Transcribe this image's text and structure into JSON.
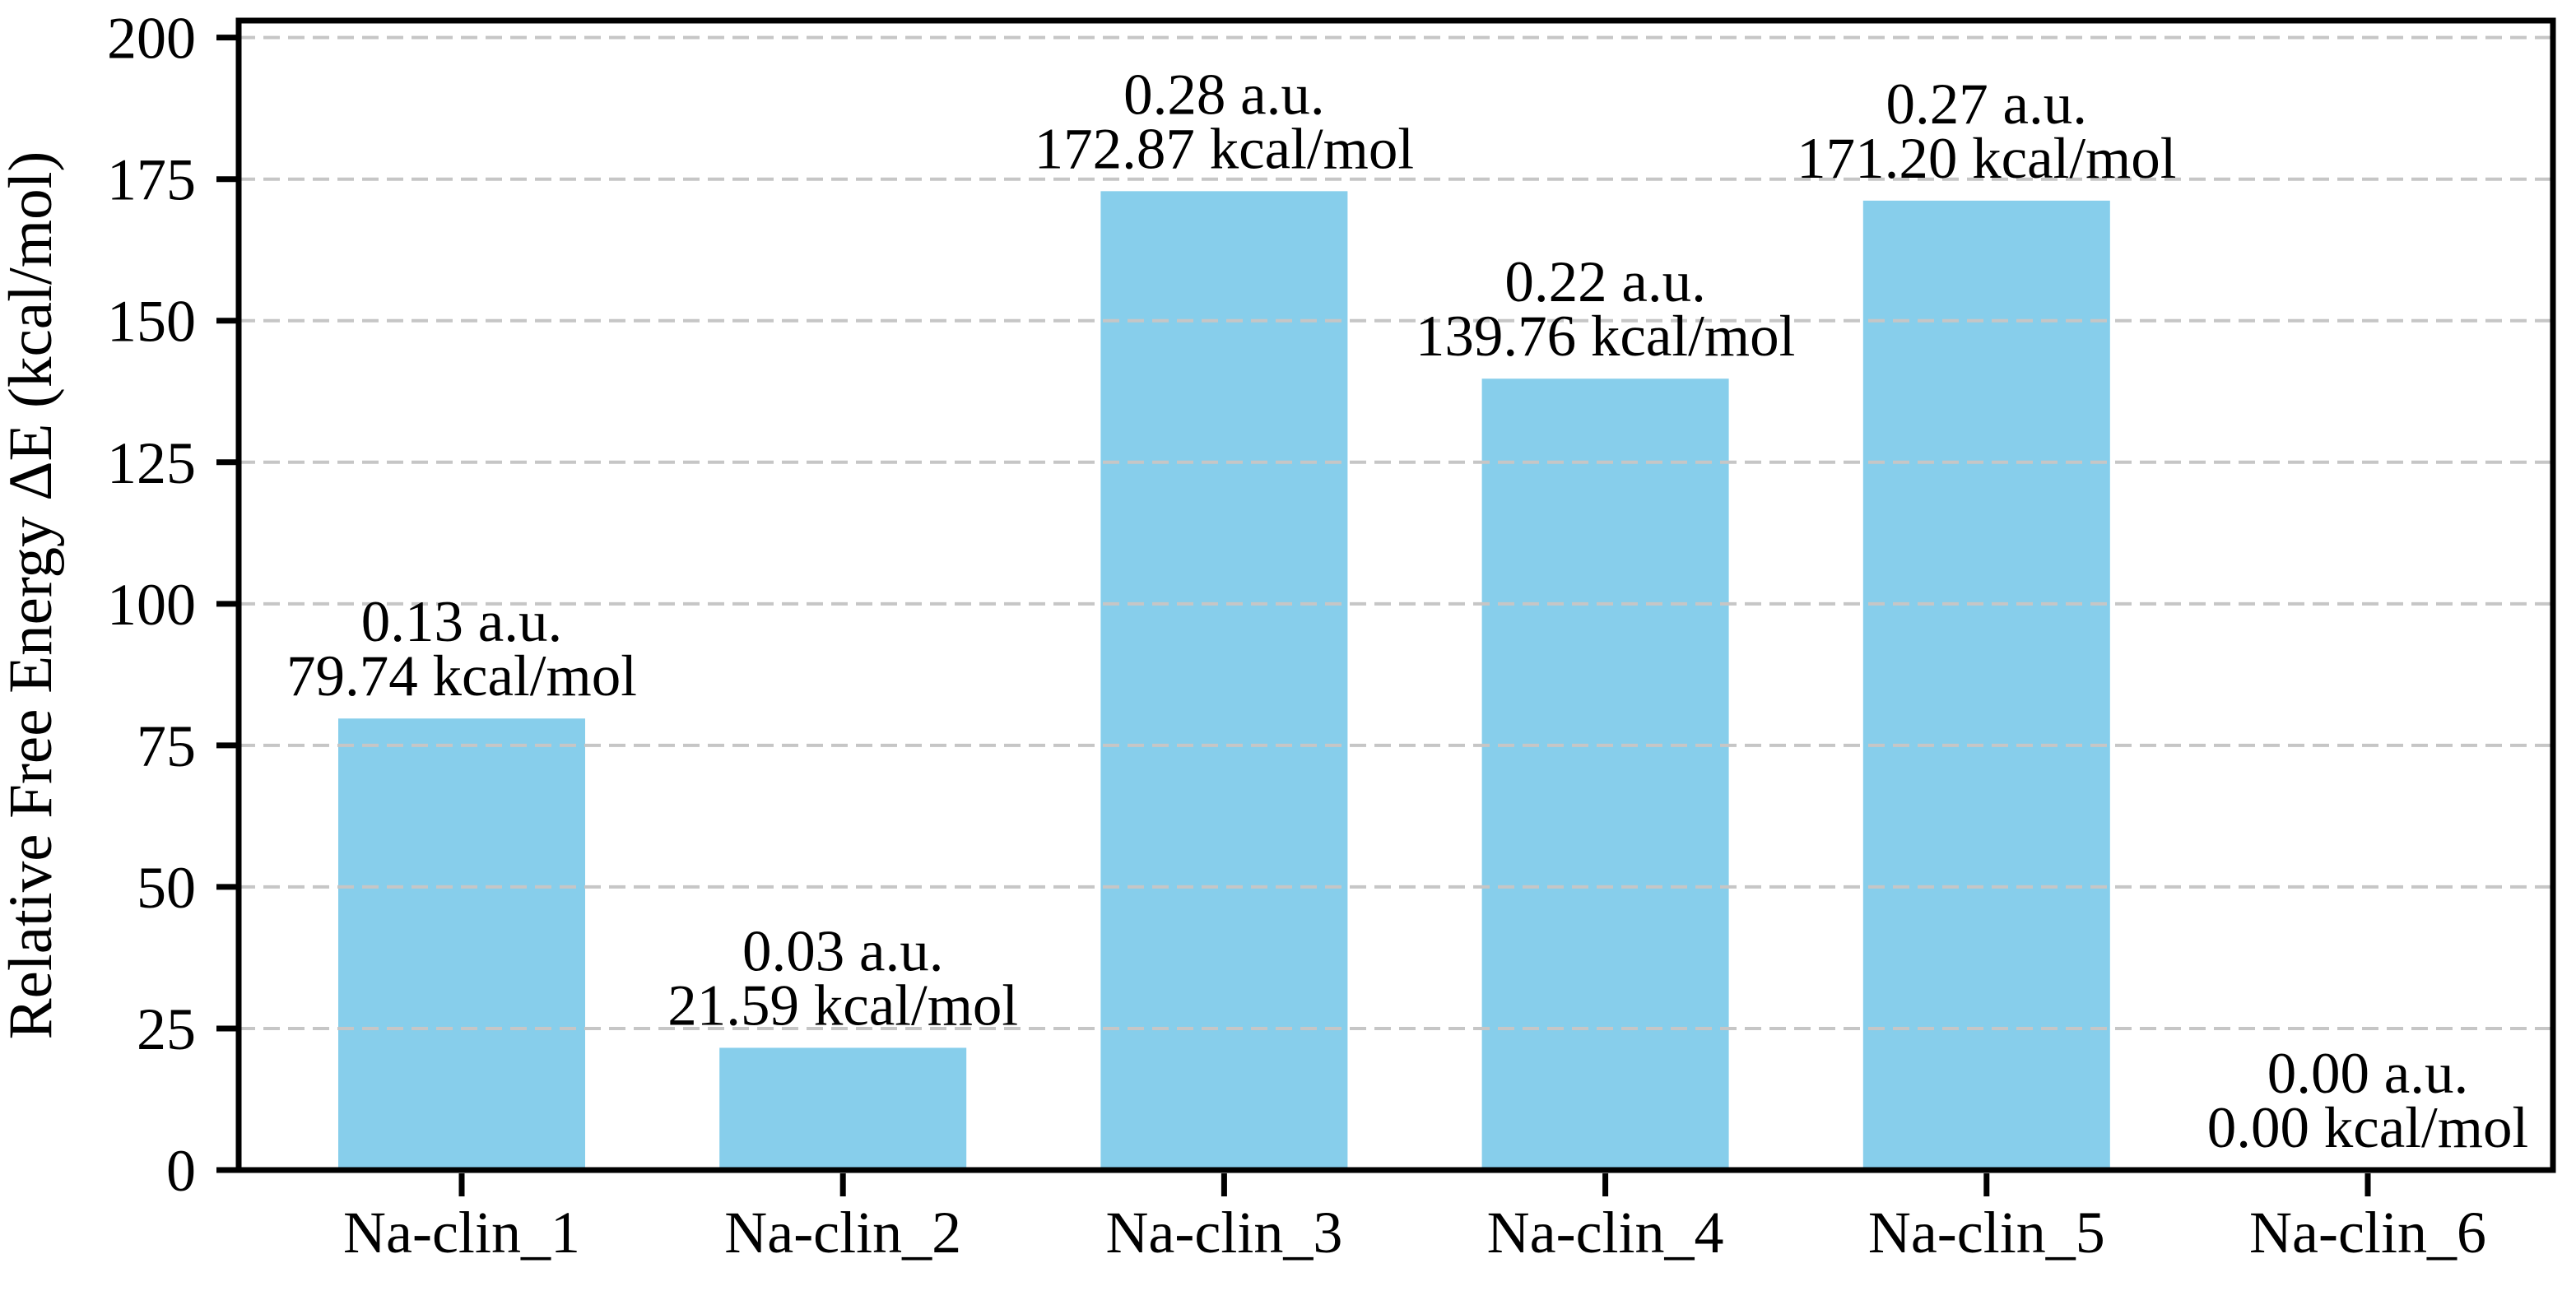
{
  "chart_data": {
    "type": "bar",
    "title": "",
    "xlabel": "",
    "ylabel": "Relative Free Energy ΔE (kcal/mol)",
    "categories": [
      "Na-clin_1",
      "Na-clin_2",
      "Na-clin_3",
      "Na-clin_4",
      "Na-clin_5",
      "Na-clin_6"
    ],
    "values": [
      79.74,
      21.59,
      172.87,
      139.76,
      171.2,
      0.0
    ],
    "bar_annotations": [
      {
        "line1": "0.13 a.u.",
        "line2": "79.74 kcal/mol"
      },
      {
        "line1": "0.03 a.u.",
        "line2": "21.59 kcal/mol"
      },
      {
        "line1": "0.28 a.u.",
        "line2": "172.87 kcal/mol"
      },
      {
        "line1": "0.22 a.u.",
        "line2": "139.76 kcal/mol"
      },
      {
        "line1": "0.27 a.u.",
        "line2": "171.20 kcal/mol"
      },
      {
        "line1": "0.00 a.u.",
        "line2": "0.00 kcal/mol"
      }
    ],
    "yticks": [
      0,
      25,
      50,
      75,
      100,
      125,
      150,
      175,
      200
    ],
    "ytick_labels": [
      "0",
      "25",
      "50",
      "75",
      "100",
      "125",
      "150",
      "175",
      "200"
    ],
    "ylim": [
      0,
      203
    ],
    "grid": "horizontal-dashed",
    "legend": "none",
    "colors": {
      "bar": "#87CEEB",
      "grid": "#c6c6c6",
      "axis": "#000000",
      "text": "#000000",
      "background": "#ffffff"
    }
  }
}
